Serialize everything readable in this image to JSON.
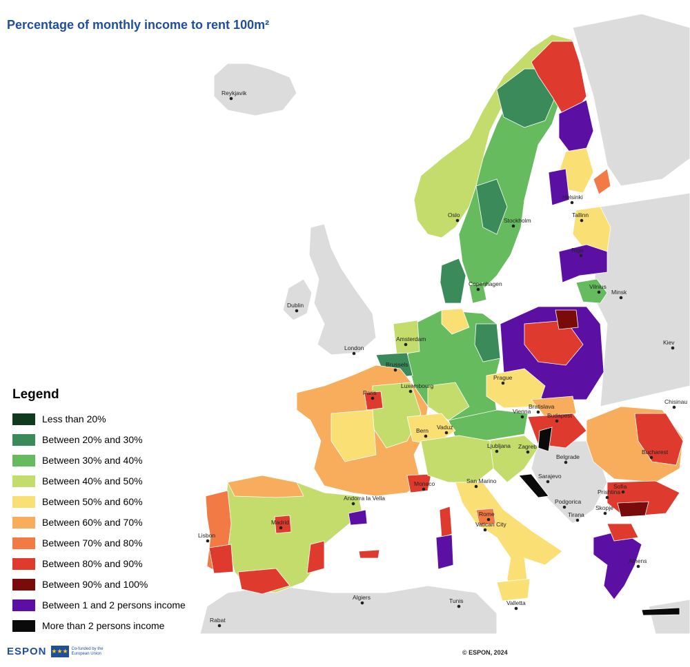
{
  "title": "Percentage of monthly income to rent 100m²",
  "legend": {
    "title": "Legend",
    "items": [
      {
        "label": "Less than 20%",
        "color": "#0f3a1d"
      },
      {
        "label": "Between 20% and 30%",
        "color": "#3a8a5a"
      },
      {
        "label": "Between 30% and 40%",
        "color": "#66bb5e"
      },
      {
        "label": "Between 40% and 50%",
        "color": "#c4dc6c"
      },
      {
        "label": "Between 50% and 60%",
        "color": "#fadf74"
      },
      {
        "label": "Between 60% and 70%",
        "color": "#f8ad5c"
      },
      {
        "label": "Between 70% and 80%",
        "color": "#f27a44"
      },
      {
        "label": "Between 80% and 90%",
        "color": "#de3a2e"
      },
      {
        "label": "Between 90% and 100%",
        "color": "#7a0b0b"
      },
      {
        "label": "Between 1 and 2 persons income",
        "color": "#5c0fa3"
      },
      {
        "label": "More than 2 persons income",
        "color": "#0a0a0a"
      }
    ]
  },
  "cities": [
    {
      "name": "Reykjavik"
    },
    {
      "name": "Oslo"
    },
    {
      "name": "Stockholm"
    },
    {
      "name": "Helsinki"
    },
    {
      "name": "Tallinn"
    },
    {
      "name": "Riga"
    },
    {
      "name": "Vilnius"
    },
    {
      "name": "Minsk"
    },
    {
      "name": "Copenhagen"
    },
    {
      "name": "Dublin"
    },
    {
      "name": "London"
    },
    {
      "name": "Amsterdam"
    },
    {
      "name": "Brussels"
    },
    {
      "name": "Luxembourg"
    },
    {
      "name": "Paris"
    },
    {
      "name": "Prague"
    },
    {
      "name": "Kiev"
    },
    {
      "name": "Chisinau"
    },
    {
      "name": "Bratislava"
    },
    {
      "name": "Vienna"
    },
    {
      "name": "Budapest"
    },
    {
      "name": "Bern"
    },
    {
      "name": "Vaduz"
    },
    {
      "name": "Ljubljana"
    },
    {
      "name": "Zagreb"
    },
    {
      "name": "Belgrade"
    },
    {
      "name": "Bucharest"
    },
    {
      "name": "Sarajevo"
    },
    {
      "name": "San Marino"
    },
    {
      "name": "Monaco"
    },
    {
      "name": "Andorra la Vella"
    },
    {
      "name": "Madrid"
    },
    {
      "name": "Lisbon"
    },
    {
      "name": "Rome"
    },
    {
      "name": "Vatican City"
    },
    {
      "name": "Podgorica"
    },
    {
      "name": "Prishtina"
    },
    {
      "name": "Sofia"
    },
    {
      "name": "Skopje"
    },
    {
      "name": "Tirana"
    },
    {
      "name": "Athens"
    },
    {
      "name": "Algiers"
    },
    {
      "name": "Tunis"
    },
    {
      "name": "Valletta"
    },
    {
      "name": "Rabat"
    }
  ],
  "footer": {
    "logo_text": "ESPON",
    "cofunded": "Co-funded by the European Union",
    "copyright": "© ESPON, 2024"
  }
}
